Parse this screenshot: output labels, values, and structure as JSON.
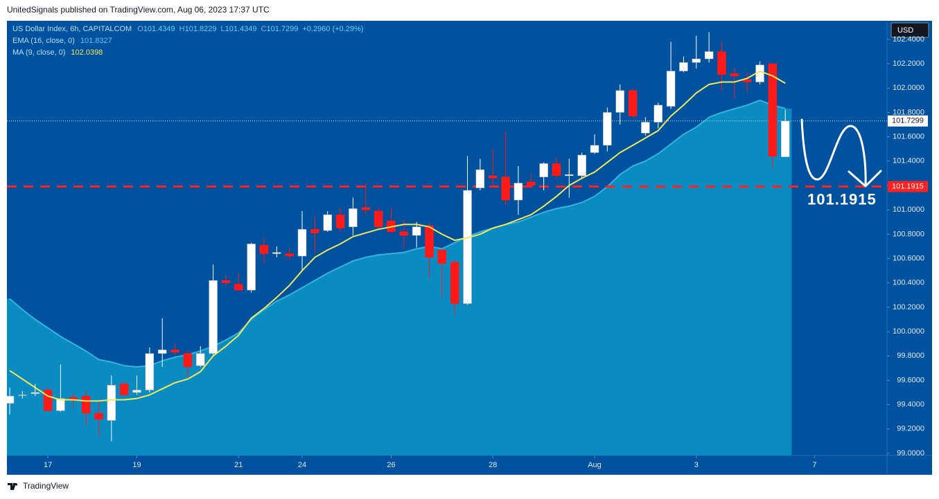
{
  "header": "UnitedSignals published on TradingView.com, Aug 06, 2023 17:37 UTC",
  "footer": "TradingView",
  "currency_button": "USD",
  "chart_data": {
    "type": "candlestick",
    "legend": {
      "symbol": "US Dollar Index, 6h, CAPITALCOM",
      "ohlc": [
        {
          "label": "O",
          "value": 101.4349
        },
        {
          "label": "H",
          "value": 101.8229
        },
        {
          "label": "L",
          "value": 101.4349
        },
        {
          "label": "C",
          "value": 101.7299
        }
      ],
      "change": "+0.2960 (+0.29%)"
    },
    "open": [
      99.41,
      99.48,
      99.49,
      99.52,
      99.35,
      99.46,
      99.47,
      99.33,
      99.27,
      99.57,
      99.5,
      99.52,
      99.82,
      99.85,
      99.82,
      99.72,
      99.82,
      100.42,
      100.39,
      100.34,
      100.71,
      100.64,
      100.64,
      100.62,
      100.84,
      100.83,
      100.96,
      100.86,
      101.02,
      100.99,
      100.91,
      100.82,
      100.79,
      100.87,
      100.67,
      100.57,
      100.23,
      101.18,
      101.28,
      101.27,
      101.08,
      101.23,
      101.27,
      101.38,
      101.28,
      101.28,
      101.47,
      101.53,
      101.8,
      101.98,
      101.63,
      101.72,
      101.85,
      102.14,
      102.21,
      102.24,
      102.3,
      102.12,
      102.07,
      102.05,
      102.2,
      101.4349
    ],
    "high": [
      99.54,
      99.51,
      99.57,
      99.54,
      99.73,
      99.49,
      99.51,
      99.43,
      99.64,
      99.59,
      99.64,
      99.87,
      100.11,
      99.9,
      99.85,
      99.88,
      100.55,
      100.46,
      100.48,
      100.73,
      100.77,
      100.7,
      100.69,
      100.99,
      100.95,
      100.99,
      101.02,
      101.1,
      101.22,
      101.02,
      101.02,
      100.92,
      100.9,
      100.89,
      100.68,
      100.59,
      101.44,
      101.42,
      101.5,
      101.64,
      101.36,
      101.3,
      101.39,
      101.43,
      101.42,
      101.47,
      101.62,
      101.84,
      102.03,
      102.0,
      101.76,
      101.88,
      102.38,
      102.26,
      102.43,
      102.46,
      102.38,
      102.17,
      102.13,
      102.22,
      102.21,
      101.8229
    ],
    "low": [
      99.32,
      99.45,
      99.47,
      99.34,
      99.34,
      99.37,
      99.23,
      99.14,
      99.1,
      99.47,
      99.48,
      99.5,
      99.71,
      99.81,
      99.61,
      99.71,
      99.81,
      100.38,
      100.34,
      100.32,
      100.56,
      100.61,
      100.59,
      100.5,
      100.65,
      100.82,
      100.82,
      100.79,
      100.96,
      100.85,
      100.81,
      100.68,
      100.69,
      100.44,
      100.28,
      100.14,
      100.22,
      101.16,
      101.19,
      101.04,
      100.96,
      101.19,
      101.16,
      101.26,
      101.1,
      101.26,
      101.46,
      101.48,
      101.7,
      101.76,
      101.61,
      101.67,
      101.83,
      102.13,
      102.16,
      102.21,
      101.98,
      101.91,
      101.97,
      102.03,
      101.34,
      101.4349
    ],
    "close": [
      99.47,
      99.48,
      99.5,
      99.35,
      99.45,
      99.44,
      99.33,
      99.28,
      99.56,
      99.48,
      99.52,
      99.82,
      99.85,
      99.83,
      99.71,
      99.82,
      100.42,
      100.4,
      100.34,
      100.72,
      100.64,
      100.65,
      100.62,
      100.84,
      100.81,
      100.96,
      100.85,
      101.01,
      101.0,
      100.86,
      100.82,
      100.79,
      100.86,
      100.61,
      100.56,
      100.23,
      101.16,
      101.33,
      101.26,
      101.08,
      101.22,
      101.2,
      101.38,
      101.28,
      101.29,
      101.45,
      101.53,
      101.8,
      101.98,
      101.77,
      101.72,
      101.86,
      102.14,
      102.21,
      102.24,
      102.3,
      102.11,
      102.1,
      102.05,
      102.19,
      101.44,
      101.7299
    ],
    "up_color": "#ffffff",
    "down_color": "#ff1a1a",
    "indicators": [
      {
        "name": "EMA (16, close, 0)",
        "kind": "area",
        "color": "#0a8cc2",
        "line_color": "#38b3dc",
        "legend_color": "#5ec8f0",
        "last": 101.8327,
        "values": [
          100.27,
          100.18,
          100.1,
          100.03,
          99.96,
          99.9,
          99.84,
          99.77,
          99.75,
          99.72,
          99.71,
          99.72,
          99.76,
          99.79,
          99.81,
          99.84,
          99.88,
          99.93,
          99.99,
          100.1,
          100.18,
          100.25,
          100.3,
          100.36,
          100.42,
          100.48,
          100.53,
          100.58,
          100.61,
          100.63,
          100.64,
          100.65,
          100.68,
          100.7,
          100.68,
          100.73,
          100.78,
          100.82,
          100.85,
          100.88,
          100.9,
          100.94,
          100.98,
          101.01,
          101.03,
          101.06,
          101.11,
          101.19,
          101.29,
          101.36,
          101.4,
          101.46,
          101.54,
          101.62,
          101.68,
          101.76,
          101.8,
          101.83,
          101.86,
          101.9,
          101.86,
          101.8327
        ]
      },
      {
        "name": "MA (9, close, 0)",
        "kind": "line",
        "color": "#f3e85a",
        "legend_color": "#f3e85a",
        "last": 102.0398,
        "values": [
          99.68,
          99.61,
          99.54,
          99.47,
          99.44,
          99.44,
          99.43,
          99.43,
          99.44,
          99.44,
          99.45,
          99.48,
          99.53,
          99.58,
          99.61,
          99.67,
          99.8,
          99.88,
          99.97,
          100.11,
          100.19,
          100.28,
          100.38,
          100.5,
          100.61,
          100.67,
          100.72,
          100.78,
          100.81,
          100.84,
          100.86,
          100.88,
          100.88,
          100.86,
          100.8,
          100.75,
          100.77,
          100.8,
          100.85,
          100.88,
          100.92,
          100.96,
          101.03,
          101.11,
          101.2,
          101.26,
          101.31,
          101.39,
          101.47,
          101.53,
          101.59,
          101.65,
          101.77,
          101.86,
          101.96,
          102.03,
          102.05,
          102.05,
          102.08,
          102.14,
          102.1,
          102.0398
        ]
      }
    ],
    "hline": {
      "value": 101.1915,
      "color": "#ff2020"
    },
    "xlim": [
      -0.22,
      69
    ],
    "xticks": [
      {
        "value": 3,
        "label": "17"
      },
      {
        "value": 10,
        "label": "19"
      },
      {
        "value": 18,
        "label": "21"
      },
      {
        "value": 23,
        "label": "24"
      },
      {
        "value": 30,
        "label": "26"
      },
      {
        "value": 38,
        "label": "28"
      },
      {
        "value": 46,
        "label": "Aug"
      },
      {
        "value": 54,
        "label": "3"
      },
      {
        "value": 63.3,
        "label": "7"
      }
    ],
    "ylim": [
      98.983,
      102.553
    ],
    "yticks": [
      {
        "value": 99.0,
        "label": "99.0000"
      },
      {
        "value": 99.2,
        "label": "99.2000"
      },
      {
        "value": 99.4,
        "label": "99.4000"
      },
      {
        "value": 99.6,
        "label": "99.6000"
      },
      {
        "value": 99.8,
        "label": "99.8000"
      },
      {
        "value": 100.0,
        "label": "100.0000"
      },
      {
        "value": 100.2,
        "label": "100.2000"
      },
      {
        "value": 100.4,
        "label": "100.4000"
      },
      {
        "value": 100.6,
        "label": "100.6000"
      },
      {
        "value": 100.8,
        "label": "100.8000"
      },
      {
        "value": 101.0,
        "label": "101.0000"
      },
      {
        "value": 101.2,
        "label": "101.2000"
      },
      {
        "value": 101.4,
        "label": "101.4000"
      },
      {
        "value": 101.6,
        "label": "101.6000"
      },
      {
        "value": 101.8,
        "label": "101.8000"
      },
      {
        "value": 102.0,
        "label": "102.0000"
      },
      {
        "value": 102.2,
        "label": "102.2000"
      },
      {
        "value": 102.4,
        "label": "102.4000"
      }
    ],
    "grid": false
  }
}
